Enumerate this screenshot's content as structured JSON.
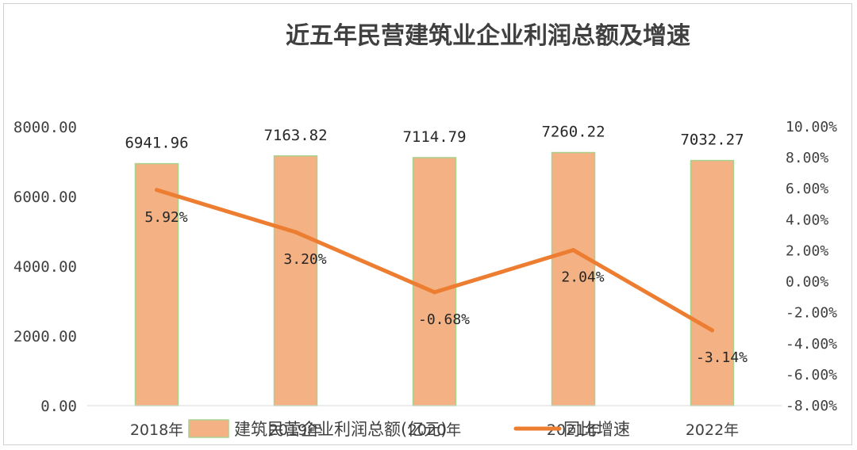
{
  "chart_data": {
    "type": "bar+line",
    "title": "近五年民营建筑业企业利润总额及增速",
    "categories": [
      "2018年",
      "2019年",
      "2020年",
      "2021年",
      "2022年"
    ],
    "series": [
      {
        "name": "建筑民营企业利润总额(亿元)",
        "type": "bar",
        "axis": "left",
        "values": [
          6941.96,
          7163.82,
          7114.79,
          7260.22,
          7032.27
        ],
        "labels": [
          "6941.96",
          "7163.82",
          "7114.79",
          "7260.22",
          "7032.27"
        ],
        "color": "#F4B183",
        "edge_color": "#A9D18E"
      },
      {
        "name": "同比增速",
        "type": "line",
        "axis": "right",
        "values": [
          5.92,
          3.2,
          -0.68,
          2.04,
          -3.14
        ],
        "labels": [
          "5.92%",
          "3.20%",
          "-0.68%",
          "2.04%",
          "-3.14%"
        ],
        "color": "#ED7D31"
      }
    ],
    "y_left": {
      "ylim": [
        0,
        8000
      ],
      "ticks": [
        0,
        2000,
        4000,
        6000,
        8000
      ],
      "tick_labels": [
        "0.00",
        "2000.00",
        "4000.00",
        "6000.00",
        "8000.00"
      ]
    },
    "y_right": {
      "ylim": [
        -8,
        10
      ],
      "ticks": [
        -8,
        -6,
        -4,
        -2,
        0,
        2,
        4,
        6,
        8,
        10
      ],
      "tick_labels": [
        "-8.00%",
        "-6.00%",
        "-4.00%",
        "-2.00%",
        "0.00%",
        "2.00%",
        "4.00%",
        "6.00%",
        "8.00%",
        "10.00%"
      ]
    },
    "grid": false,
    "legend": "bottom"
  }
}
